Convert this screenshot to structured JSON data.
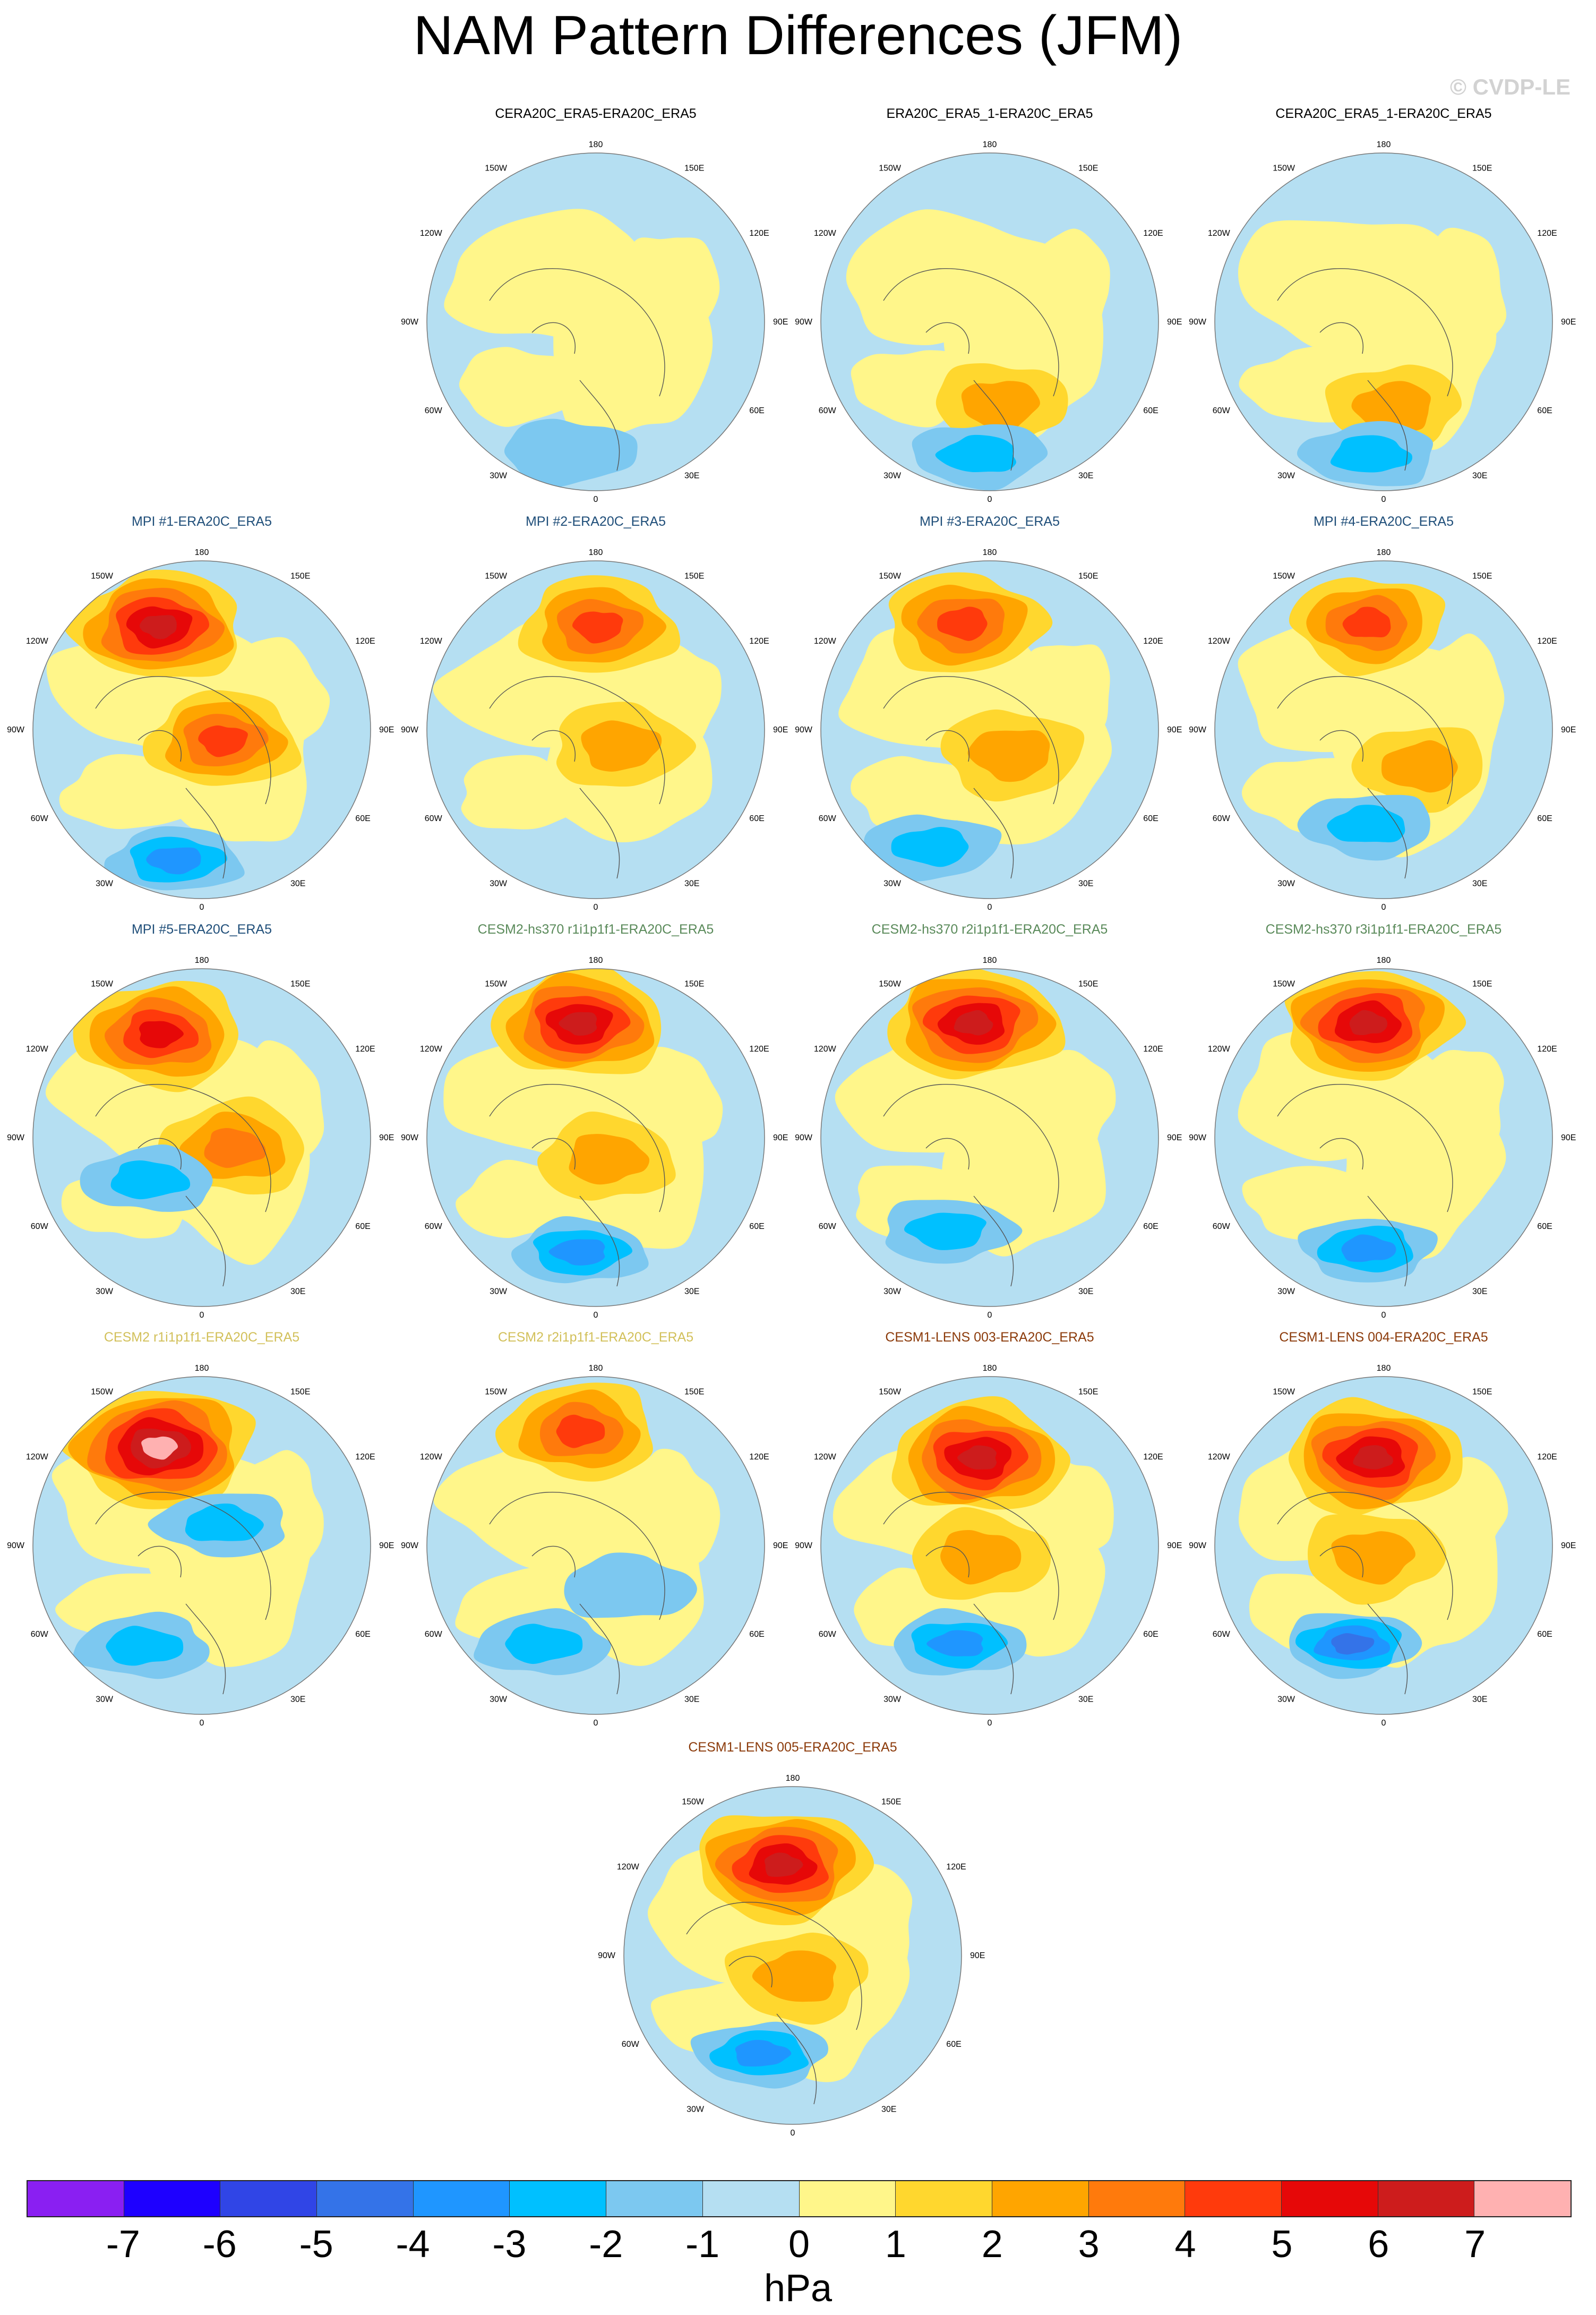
{
  "title": "NAM Pattern Differences (JFM)",
  "watermark": "© CVDP-LE",
  "panels": [
    {
      "title": "CERA20C_ERA5-ERA20C_ERA5",
      "title_color": "#000000",
      "highs": [],
      "lows": [
        [
          -50,
          245,
          0.7
        ]
      ]
    },
    {
      "title": "ERA20C_ERA5_1-ERA20C_ERA5",
      "title_color": "#000000",
      "highs": [
        [
          20,
          155,
          1.3
        ]
      ],
      "lows": [
        [
          -20,
          250,
          1.3
        ]
      ]
    },
    {
      "title": "CERA20C_ERA5_1-ERA20C_ERA5",
      "title_color": "#000000",
      "highs": [
        [
          20,
          160,
          1.4
        ]
      ],
      "lows": [
        [
          -25,
          250,
          1.5
        ]
      ]
    },
    {
      "title": "MPI #1-ERA20C_ERA5",
      "title_color": "#1f4e79",
      "highs": [
        [
          -80,
          -195,
          5.2
        ],
        [
          40,
          20,
          3.2
        ]
      ],
      "lows": [
        [
          -50,
          245,
          2.5
        ]
      ]
    },
    {
      "title": "MPI #2-ERA20C_ERA5",
      "title_color": "#1f4e79",
      "highs": [
        [
          5,
          -195,
          3.6
        ],
        [
          45,
          30,
          1.5
        ]
      ],
      "lows": []
    },
    {
      "title": "MPI #3-ERA20C_ERA5",
      "title_color": "#1f4e79",
      "highs": [
        [
          -50,
          -200,
          4.0
        ],
        [
          40,
          45,
          2.0
        ]
      ],
      "lows": [
        [
          -110,
          220,
          1.4
        ]
      ]
    },
    {
      "title": "MPI #4-ERA20C_ERA5",
      "title_color": "#1f4e79",
      "highs": [
        [
          -30,
          -200,
          3.2
        ],
        [
          70,
          70,
          1.2
        ]
      ],
      "lows": [
        [
          -30,
          180,
          1.2
        ]
      ]
    },
    {
      "title": "MPI #5-ERA20C_ERA5",
      "title_color": "#1f4e79",
      "highs": [
        [
          -80,
          -195,
          4.8
        ],
        [
          60,
          20,
          2.8
        ]
      ],
      "lows": [
        [
          -100,
          80,
          1.2
        ]
      ]
    },
    {
      "title": "CESM2-hs370 r1i1p1f1-ERA20C_ERA5",
      "title_color": "#5a8a5a",
      "highs": [
        [
          -30,
          -215,
          5.3
        ],
        [
          20,
          40,
          1.5
        ]
      ],
      "lows": [
        [
          -30,
          215,
          2.5
        ]
      ]
    },
    {
      "title": "CESM2-hs370 r2i1p1f1-ERA20C_ERA5",
      "title_color": "#5a8a5a",
      "highs": [
        [
          -30,
          -215,
          5.6
        ]
      ],
      "lows": [
        [
          -80,
          175,
          1.5
        ]
      ]
    },
    {
      "title": "CESM2-hs370 r3i1p1f1-ERA20C_ERA5",
      "title_color": "#5a8a5a",
      "highs": [
        [
          -30,
          -215,
          5.6
        ]
      ],
      "lows": [
        [
          -30,
          210,
          2.5
        ]
      ]
    },
    {
      "title": "CESM2 r1i1p1f1-ERA20C_ERA5",
      "title_color": "#d2c05a",
      "highs": [
        [
          -80,
          -185,
          7.0
        ]
      ],
      "lows": [
        [
          40,
          -40,
          1.5
        ],
        [
          -110,
          190,
          1.5
        ]
      ]
    },
    {
      "title": "CESM2 r2i1p1f1-ERA20C_ERA5",
      "title_color": "#d2c05a",
      "highs": [
        [
          -30,
          -215,
          3.5
        ]
      ],
      "lows": [
        [
          -100,
          185,
          1.7
        ],
        [
          60,
          80,
          1.0
        ]
      ]
    },
    {
      "title": "CESM1-LENS 003-ERA20C_ERA5",
      "title_color": "#8b3a0a",
      "highs": [
        [
          -20,
          -165,
          5.7
        ],
        [
          -20,
          20,
          2.0
        ]
      ],
      "lows": [
        [
          -60,
          185,
          3.0
        ]
      ]
    },
    {
      "title": "CESM1-LENS 004-ERA20C_ERA5",
      "title_color": "#8b3a0a",
      "highs": [
        [
          -20,
          -165,
          5.7
        ],
        [
          -20,
          20,
          2.0
        ]
      ],
      "lows": [
        [
          -60,
          185,
          3.4
        ]
      ]
    },
    {
      "title": "CESM1-LENS 005-ERA20C_ERA5",
      "title_color": "#8b3a0a",
      "highs": [
        [
          -20,
          -170,
          5.5
        ],
        [
          10,
          40,
          2.0
        ]
      ],
      "lows": [
        [
          -60,
          185,
          2.4
        ]
      ]
    }
  ],
  "longitude_labels": [
    "180",
    "150E",
    "120E",
    "90E",
    "60E",
    "30E",
    "0",
    "30W",
    "60W",
    "90W",
    "120W",
    "150W"
  ],
  "colorbar": {
    "colors": [
      "#8a1ff2",
      "#1e00ff",
      "#3045e6",
      "#3473e8",
      "#1f96ff",
      "#00c0ff",
      "#7cc8f0",
      "#b5dff2",
      "#fff68a",
      "#ffd72e",
      "#ffa500",
      "#ff7a0c",
      "#ff3a0c",
      "#e60808",
      "#cd1c1c",
      "#ffb1b1"
    ],
    "ticks": [
      "-7",
      "-6",
      "-5",
      "-4",
      "-3",
      "-2",
      "-1",
      "0",
      "1",
      "2",
      "3",
      "4",
      "5",
      "6",
      "7"
    ],
    "label": "hPa"
  }
}
